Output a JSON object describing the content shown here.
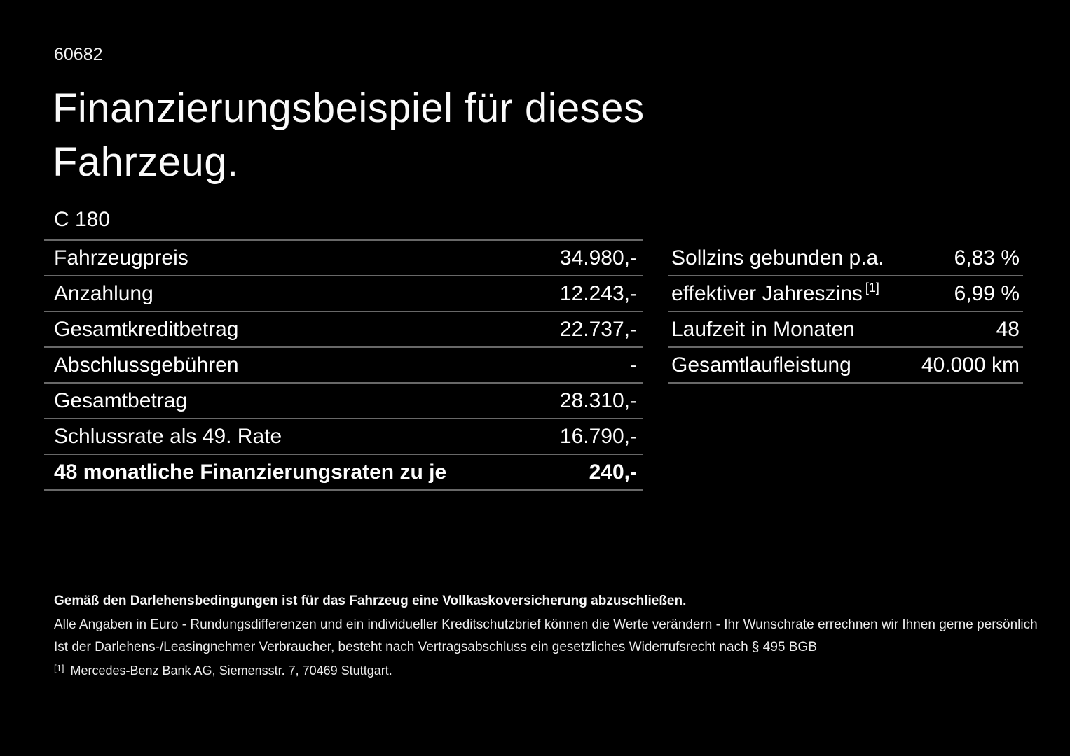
{
  "page": {
    "doc_number": "60682",
    "title": "Finanzierungsbeispiel für dieses\nFahrzeug.",
    "model": "C 180"
  },
  "finance_table": {
    "rows": [
      {
        "label": "Fahrzeugpreis",
        "value": "34.980,-"
      },
      {
        "label": "Anzahlung",
        "value": "12.243,-"
      },
      {
        "label": "Gesamtkreditbetrag",
        "value": "22.737,-"
      },
      {
        "label": "Abschlussgebühren",
        "value": "-"
      },
      {
        "label": "Gesamtbetrag",
        "value": "28.310,-"
      },
      {
        "label": "Schlussrate als 49. Rate",
        "value": "16.790,-"
      },
      {
        "label": "48 monatliche Finanzierungsraten zu je",
        "value": "240,-"
      }
    ]
  },
  "conditions_table": {
    "rows": [
      {
        "label": "Sollzins gebunden p.a.",
        "value": "6,83 %"
      },
      {
        "label": "effektiver Jahreszins",
        "footnote_marker": "[1]",
        "value": "6,99 %"
      },
      {
        "label": "Laufzeit in Monaten",
        "value": "48"
      },
      {
        "label": "Gesamtlaufleistung",
        "value": "40.000 km"
      }
    ]
  },
  "disclaimer": {
    "insurance_note": "Gemäß den Darlehensbedingungen ist für das Fahrzeug eine Vollkaskoversicherung abzuschließen.",
    "euro_note": "Alle Angaben in Euro - Rundungsdifferenzen und ein individueller Kreditschutzbrief können die Werte verändern - Ihr Wunschrate errechnen wir Ihnen gerne persönlich",
    "withdrawal_note": "Ist der Darlehens-/Leasingnehmer Verbraucher, besteht nach Vertragsabschluss ein gesetzliches Widerrufsrecht nach § 495 BGB",
    "footnote_marker": "[1]",
    "footnote_text": "Mercedes-Benz Bank AG, Siemensstr. 7, 70469 Stuttgart."
  },
  "colors": {
    "background": "#000000",
    "text": "#fdfdfd",
    "divider": "#686868"
  }
}
